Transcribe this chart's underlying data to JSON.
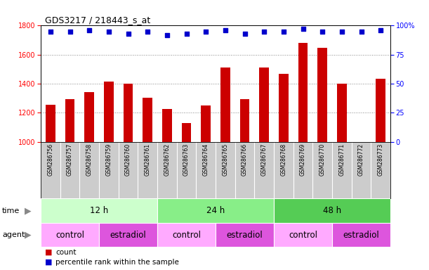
{
  "title": "GDS3217 / 218443_s_at",
  "samples": [
    "GSM286756",
    "GSM286757",
    "GSM286758",
    "GSM286759",
    "GSM286760",
    "GSM286761",
    "GSM286762",
    "GSM286763",
    "GSM286764",
    "GSM286765",
    "GSM286766",
    "GSM286767",
    "GSM286768",
    "GSM286769",
    "GSM286770",
    "GSM286771",
    "GSM286772",
    "GSM286773"
  ],
  "counts": [
    1255,
    1295,
    1340,
    1415,
    1400,
    1305,
    1225,
    1130,
    1250,
    1510,
    1295,
    1510,
    1470,
    1680,
    1645,
    1400,
    1000,
    1435
  ],
  "percentile": [
    95,
    95,
    96,
    95,
    93,
    95,
    92,
    93,
    95,
    96,
    93,
    95,
    95,
    97,
    95,
    95,
    95,
    96
  ],
  "bar_color": "#cc0000",
  "dot_color": "#0000cc",
  "ylim_left": [
    1000,
    1800
  ],
  "ylim_right": [
    0,
    100
  ],
  "yticks_left": [
    1000,
    1200,
    1400,
    1600,
    1800
  ],
  "yticks_right": [
    0,
    25,
    50,
    75,
    100
  ],
  "time_groups": [
    {
      "label": "12 h",
      "start": 0,
      "end": 6,
      "color": "#ccffcc"
    },
    {
      "label": "24 h",
      "start": 6,
      "end": 12,
      "color": "#88ee88"
    },
    {
      "label": "48 h",
      "start": 12,
      "end": 18,
      "color": "#55cc55"
    }
  ],
  "agent_groups": [
    {
      "label": "control",
      "start": 0,
      "end": 3,
      "color": "#ffaaff"
    },
    {
      "label": "estradiol",
      "start": 3,
      "end": 6,
      "color": "#dd55dd"
    },
    {
      "label": "control",
      "start": 6,
      "end": 9,
      "color": "#ffaaff"
    },
    {
      "label": "estradiol",
      "start": 9,
      "end": 12,
      "color": "#dd55dd"
    },
    {
      "label": "control",
      "start": 12,
      "end": 15,
      "color": "#ffaaff"
    },
    {
      "label": "estradiol",
      "start": 15,
      "end": 18,
      "color": "#dd55dd"
    }
  ],
  "legend_items": [
    {
      "label": "count",
      "color": "#cc0000"
    },
    {
      "label": "percentile rank within the sample",
      "color": "#0000cc"
    }
  ],
  "bar_width": 0.5,
  "label_bg": "#cccccc",
  "label_sep_color": "#ffffff",
  "grid_color": "#888888",
  "spine_color": "#000000"
}
